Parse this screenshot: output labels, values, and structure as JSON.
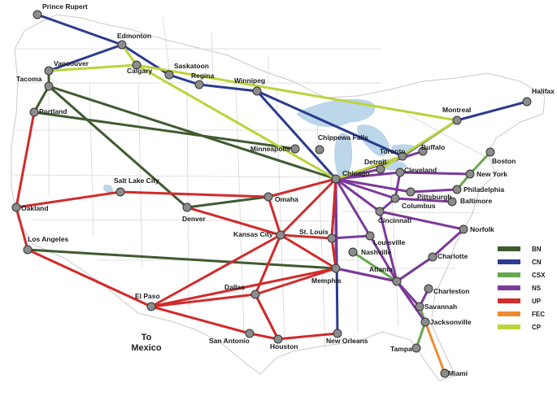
{
  "map": {
    "annotation": {
      "line1": "To",
      "line2": "Mexico"
    },
    "colors": {
      "land": "#ffffff",
      "border": "#c9c9c9",
      "lakes": "#bcd6ea",
      "node_fill": "#8c8c8c",
      "node_stroke": "#333333"
    },
    "cities": [
      {
        "id": "prince_rupert",
        "label": "Prince Rupert"
      },
      {
        "id": "edmonton",
        "label": "Edmonton"
      },
      {
        "id": "vancouver",
        "label": "Vancouver"
      },
      {
        "id": "calgary",
        "label": "Calgary"
      },
      {
        "id": "saskatoon",
        "label": "Saskatoon"
      },
      {
        "id": "regina",
        "label": "Regina"
      },
      {
        "id": "winnipeg",
        "label": "Winnipeg"
      },
      {
        "id": "tacoma",
        "label": "Tacoma"
      },
      {
        "id": "portland",
        "label": "Portland"
      },
      {
        "id": "halifax",
        "label": "Halifax"
      },
      {
        "id": "montreal",
        "label": "Montreal"
      },
      {
        "id": "chippewa_falls",
        "label": "Chippewa Falls"
      },
      {
        "id": "minneapolis",
        "label": "Minneapolis"
      },
      {
        "id": "toronto",
        "label": "Toronto"
      },
      {
        "id": "buffalo",
        "label": "Buffalo"
      },
      {
        "id": "detroit",
        "label": "Detroit"
      },
      {
        "id": "chicago",
        "label": "Chicago"
      },
      {
        "id": "boston",
        "label": "Boston"
      },
      {
        "id": "new_york",
        "label": "New York"
      },
      {
        "id": "cleveland",
        "label": "Cleveland"
      },
      {
        "id": "philadelphia",
        "label": "Philadelphia"
      },
      {
        "id": "pittsburgh",
        "label": "Pittsburgh"
      },
      {
        "id": "baltimore",
        "label": "Baltimore"
      },
      {
        "id": "columbus",
        "label": "Columbus"
      },
      {
        "id": "salt_lake_city",
        "label": "Salt Lake City"
      },
      {
        "id": "oakland",
        "label": "Oakland"
      },
      {
        "id": "omaha",
        "label": "Omaha"
      },
      {
        "id": "denver",
        "label": "Denver"
      },
      {
        "id": "cincinnati",
        "label": "Cincinnati"
      },
      {
        "id": "norfolk",
        "label": "Norfolk"
      },
      {
        "id": "kansas_city",
        "label": "Kansas City"
      },
      {
        "id": "st_louis",
        "label": "St. Louis"
      },
      {
        "id": "louisville",
        "label": "Louisville"
      },
      {
        "id": "los_angeles",
        "label": "Los Angeles"
      },
      {
        "id": "nashville",
        "label": "Nashville"
      },
      {
        "id": "charlotte",
        "label": "Charlotte"
      },
      {
        "id": "atlanta",
        "label": "Atlanta"
      },
      {
        "id": "memphis",
        "label": "Memphis"
      },
      {
        "id": "el_paso",
        "label": "El Paso"
      },
      {
        "id": "dallas",
        "label": "Dallas"
      },
      {
        "id": "charleston",
        "label": "Charleston"
      },
      {
        "id": "savannah",
        "label": "Savannah"
      },
      {
        "id": "jacksonville",
        "label": "Jacksonville"
      },
      {
        "id": "san_antonio",
        "label": "San Antonio"
      },
      {
        "id": "houston",
        "label": "Houston"
      },
      {
        "id": "new_orleans",
        "label": "New Orleans"
      },
      {
        "id": "tampa",
        "label": "Tampa"
      },
      {
        "id": "miami",
        "label": "Miami"
      }
    ],
    "railroads": [
      {
        "name": "BN",
        "color": "#3f5b30",
        "routes": [
          [
            "tacoma",
            "vancouver"
          ],
          [
            "tacoma",
            "portland"
          ],
          [
            "portland",
            "minneapolis"
          ],
          [
            "tacoma",
            "chicago"
          ],
          [
            "tacoma",
            "denver"
          ],
          [
            "denver",
            "omaha"
          ],
          [
            "los_angeles",
            "memphis"
          ],
          [
            "memphis",
            "atlanta"
          ],
          [
            "dallas",
            "houston"
          ]
        ]
      },
      {
        "name": "CN",
        "color": "#2b3b8f",
        "routes": [
          [
            "prince_rupert",
            "edmonton"
          ],
          [
            "edmonton",
            "vancouver"
          ],
          [
            "edmonton",
            "saskatoon"
          ],
          [
            "saskatoon",
            "regina"
          ],
          [
            "regina",
            "winnipeg"
          ],
          [
            "winnipeg",
            "chicago"
          ],
          [
            "winnipeg",
            "toronto"
          ],
          [
            "toronto",
            "montreal"
          ],
          [
            "montreal",
            "halifax"
          ],
          [
            "chicago",
            "new_orleans"
          ],
          [
            "chicago",
            "memphis"
          ]
        ]
      },
      {
        "name": "CSX",
        "color": "#66a84f",
        "routes": [
          [
            "boston",
            "new_york"
          ],
          [
            "new_york",
            "philadelphia"
          ],
          [
            "nashville",
            "atlanta"
          ],
          [
            "atlanta",
            "charlotte"
          ],
          [
            "atlanta",
            "savannah"
          ],
          [
            "savannah",
            "jacksonville"
          ],
          [
            "jacksonville",
            "tampa"
          ]
        ]
      },
      {
        "name": "NS",
        "color": "#7b3a9a",
        "routes": [
          [
            "chicago",
            "detroit"
          ],
          [
            "chicago",
            "buffalo"
          ],
          [
            "chicago",
            "cleveland"
          ],
          [
            "cleveland",
            "new_york"
          ],
          [
            "chicago",
            "pittsburgh"
          ],
          [
            "pittsburgh",
            "philadelphia"
          ],
          [
            "chicago",
            "columbus"
          ],
          [
            "columbus",
            "baltimore"
          ],
          [
            "chicago",
            "cincinnati"
          ],
          [
            "cincinnati",
            "norfolk"
          ],
          [
            "chicago",
            "louisville"
          ],
          [
            "chicago",
            "st_louis"
          ],
          [
            "st_louis",
            "louisville"
          ],
          [
            "louisville",
            "atlanta"
          ],
          [
            "cincinnati",
            "atlanta"
          ],
          [
            "atlanta",
            "charlotte"
          ],
          [
            "charlotte",
            "norfolk"
          ],
          [
            "atlanta",
            "savannah"
          ],
          [
            "savannah",
            "charleston"
          ],
          [
            "memphis",
            "atlanta"
          ],
          [
            "atlanta",
            "jacksonville"
          ],
          [
            "cleveland",
            "columbus"
          ],
          [
            "columbus",
            "cincinnati"
          ],
          [
            "memphis",
            "chicago"
          ]
        ]
      },
      {
        "name": "UP",
        "color": "#d12b2b",
        "routes": [
          [
            "portland",
            "oakland"
          ],
          [
            "oakland",
            "los_angeles"
          ],
          [
            "oakland",
            "salt_lake_city"
          ],
          [
            "salt_lake_city",
            "omaha"
          ],
          [
            "omaha",
            "chicago"
          ],
          [
            "omaha",
            "kansas_city"
          ],
          [
            "kansas_city",
            "chicago"
          ],
          [
            "kansas_city",
            "st_louis"
          ],
          [
            "st_louis",
            "chicago"
          ],
          [
            "los_angeles",
            "el_paso"
          ],
          [
            "el_paso",
            "san_antonio"
          ],
          [
            "el_paso",
            "dallas"
          ],
          [
            "el_paso",
            "memphis"
          ],
          [
            "dallas",
            "kansas_city"
          ],
          [
            "dallas",
            "houston"
          ],
          [
            "san_antonio",
            "houston"
          ],
          [
            "houston",
            "new_orleans"
          ],
          [
            "kansas_city",
            "el_paso"
          ],
          [
            "kansas_city",
            "denver"
          ],
          [
            "st_louis",
            "memphis"
          ],
          [
            "memphis",
            "dallas"
          ],
          [
            "kansas_city",
            "memphis"
          ]
        ]
      },
      {
        "name": "FEC",
        "color": "#ef8a2e",
        "routes": [
          [
            "jacksonville",
            "miami"
          ]
        ]
      },
      {
        "name": "CP",
        "color": "#bcd33c",
        "routes": [
          [
            "vancouver",
            "calgary"
          ],
          [
            "calgary",
            "edmonton"
          ],
          [
            "calgary",
            "chicago"
          ],
          [
            "calgary",
            "montreal"
          ],
          [
            "montreal",
            "detroit"
          ],
          [
            "chicago",
            "toronto"
          ]
        ]
      }
    ]
  }
}
